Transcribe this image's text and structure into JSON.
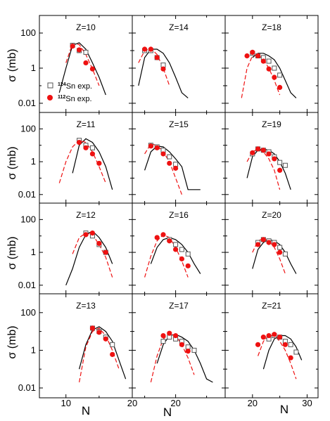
{
  "figure": {
    "ylabel": "σ (mb)",
    "xlabel": "N",
    "y_ticks": [
      "100",
      "1",
      "0.01"
    ],
    "x_ticks": [
      {
        "col": 0,
        "labels": [
          {
            "value": 10,
            "text": "10"
          },
          {
            "value": 20,
            "text": "20"
          }
        ]
      },
      {
        "col": 1,
        "labels": [
          {
            "value": 20,
            "text": "20"
          }
        ]
      },
      {
        "col": 2,
        "labels": [
          {
            "value": 20,
            "text": "20"
          },
          {
            "value": 30,
            "text": "30"
          }
        ]
      }
    ],
    "legend": [
      {
        "sup": "124",
        "name": "Sn exp.",
        "marker": "open-square"
      },
      {
        "sup": "112",
        "name": "Sn exp.",
        "marker": "filled-circle"
      }
    ],
    "colors": {
      "sn124": "#555555",
      "sn112": "#ee1111",
      "calc_black": "#000000",
      "calc_red": "#ee1111",
      "frame": "#000000"
    }
  },
  "chart_data": [
    {
      "type": "scatter",
      "title": "Z=10",
      "xlim": [
        6,
        20
      ],
      "ylim": [
        0.003,
        1000
      ],
      "yscale": "log",
      "sn124": [
        [
          11,
          20
        ],
        [
          12,
          10
        ],
        [
          13,
          8
        ]
      ],
      "sn112": [
        [
          11,
          18
        ],
        [
          12,
          11
        ],
        [
          13,
          2
        ],
        [
          14,
          0.9
        ]
      ],
      "calc_black": [
        [
          9,
          0.04
        ],
        [
          10,
          1
        ],
        [
          11,
          20
        ],
        [
          12,
          28
        ],
        [
          13,
          12
        ],
        [
          14,
          2
        ],
        [
          15,
          0.3
        ],
        [
          16,
          0.03
        ]
      ],
      "calc_red": [
        [
          10,
          2
        ],
        [
          11,
          25
        ],
        [
          12,
          22
        ],
        [
          13,
          6
        ],
        [
          14,
          0.9
        ],
        [
          15,
          0.1
        ]
      ]
    },
    {
      "type": "scatter",
      "title": "Z=14",
      "xlim": [
        13,
        28
      ],
      "ylim": [
        0.003,
        1000
      ],
      "yscale": "log",
      "sn124": [
        [
          15,
          10
        ],
        [
          16,
          10
        ],
        [
          17,
          4
        ],
        [
          18,
          1.5
        ]
      ],
      "sn112": [
        [
          15,
          12
        ],
        [
          16,
          12
        ],
        [
          17,
          4
        ],
        [
          18,
          0.9
        ]
      ],
      "calc_black": [
        [
          14,
          0.1
        ],
        [
          15,
          4
        ],
        [
          16,
          12
        ],
        [
          17,
          12
        ],
        [
          18,
          7
        ],
        [
          19,
          2
        ],
        [
          20,
          0.3
        ],
        [
          21,
          0.04
        ],
        [
          22,
          0.02
        ]
      ],
      "calc_red": [
        [
          14,
          2
        ],
        [
          15,
          10
        ],
        [
          16,
          13
        ],
        [
          17,
          6
        ],
        [
          18,
          1
        ],
        [
          19,
          0.1
        ]
      ]
    },
    {
      "type": "scatter",
      "title": "Z=18",
      "xlim": [
        15,
        32
      ],
      "ylim": [
        0.003,
        1000
      ],
      "yscale": "log",
      "sn124": [
        [
          20,
          7
        ],
        [
          21,
          5
        ],
        [
          22,
          4
        ],
        [
          23,
          2.5
        ],
        [
          24,
          1
        ],
        [
          25,
          0.4
        ]
      ],
      "sn112": [
        [
          19,
          5
        ],
        [
          20,
          8
        ],
        [
          21,
          5
        ],
        [
          22,
          2.5
        ],
        [
          23,
          0.9
        ],
        [
          24,
          0.3
        ],
        [
          25,
          0.08
        ]
      ],
      "calc_black": [
        [
          20,
          4
        ],
        [
          21,
          7
        ],
        [
          22,
          7
        ],
        [
          23,
          5
        ],
        [
          24,
          3
        ],
        [
          25,
          1
        ],
        [
          26,
          0.2
        ],
        [
          27,
          0.04
        ],
        [
          28,
          0.02
        ]
      ],
      "calc_red": [
        [
          18,
          0.02
        ],
        [
          19,
          1
        ],
        [
          20,
          5
        ],
        [
          21,
          6
        ],
        [
          22,
          3
        ],
        [
          23,
          1
        ],
        [
          24,
          0.2
        ],
        [
          25,
          0.03
        ]
      ]
    },
    {
      "type": "scatter",
      "title": "Z=11",
      "xlim": [
        6,
        20
      ],
      "ylim": [
        0.003,
        1000
      ],
      "yscale": "log",
      "sn124": [
        [
          12,
          20
        ],
        [
          13,
          10
        ],
        [
          14,
          7
        ]
      ],
      "sn112": [
        [
          12,
          15
        ],
        [
          13,
          7
        ],
        [
          14,
          3
        ],
        [
          15,
          0.8
        ]
      ],
      "calc_black": [
        [
          11,
          0.2
        ],
        [
          12,
          10
        ],
        [
          13,
          25
        ],
        [
          14,
          15
        ],
        [
          15,
          4
        ],
        [
          16,
          0.5
        ],
        [
          17,
          0.02
        ]
      ],
      "calc_red": [
        [
          9,
          0.05
        ],
        [
          10,
          1
        ],
        [
          11,
          8
        ],
        [
          12,
          20
        ],
        [
          13,
          15
        ],
        [
          14,
          4
        ],
        [
          15,
          0.5
        ],
        [
          16,
          0.05
        ]
      ]
    },
    {
      "type": "scatter",
      "title": "Z=15",
      "xlim": [
        13,
        28
      ],
      "ylim": [
        0.003,
        1000
      ],
      "yscale": "log",
      "sn124": [
        [
          16,
          10
        ],
        [
          17,
          8
        ],
        [
          18,
          5
        ],
        [
          19,
          2
        ],
        [
          20,
          0.7
        ]
      ],
      "sn112": [
        [
          16,
          9
        ],
        [
          17,
          7
        ],
        [
          18,
          3
        ],
        [
          19,
          0.8
        ],
        [
          20,
          0.4
        ]
      ],
      "calc_black": [
        [
          15,
          0.3
        ],
        [
          16,
          4
        ],
        [
          17,
          9
        ],
        [
          18,
          8
        ],
        [
          19,
          4
        ],
        [
          20,
          1.5
        ],
        [
          21,
          0.5
        ],
        [
          22,
          0.02
        ],
        [
          23,
          0.02
        ],
        [
          24,
          0.02
        ]
      ],
      "calc_red": [
        [
          15,
          3
        ],
        [
          16,
          12
        ],
        [
          17,
          10
        ],
        [
          18,
          4
        ],
        [
          19,
          1
        ],
        [
          20,
          0.1
        ],
        [
          21,
          0.01
        ]
      ]
    },
    {
      "type": "scatter",
      "title": "Z=19",
      "xlim": [
        15,
        32
      ],
      "ylim": [
        0.003,
        1000
      ],
      "yscale": "log",
      "sn124": [
        [
          20,
          3
        ],
        [
          21,
          6
        ],
        [
          22,
          5
        ],
        [
          23,
          4
        ],
        [
          24,
          2
        ],
        [
          25,
          0.9
        ],
        [
          26,
          0.6
        ]
      ],
      "sn112": [
        [
          20,
          3.5
        ],
        [
          21,
          6
        ],
        [
          22,
          5
        ],
        [
          23,
          3
        ],
        [
          24,
          1.5
        ],
        [
          25,
          0.3
        ]
      ],
      "calc_black": [
        [
          19,
          0.1
        ],
        [
          20,
          2
        ],
        [
          21,
          5
        ],
        [
          22,
          6
        ],
        [
          23,
          5
        ],
        [
          24,
          3
        ],
        [
          25,
          1
        ],
        [
          26,
          0.2
        ],
        [
          27,
          0.02
        ]
      ],
      "calc_red": [
        [
          19,
          1
        ],
        [
          20,
          4
        ],
        [
          21,
          6
        ],
        [
          22,
          4
        ],
        [
          23,
          1.5
        ],
        [
          24,
          0.3
        ],
        [
          25,
          0.02
        ]
      ]
    },
    {
      "type": "scatter",
      "title": "Z=12",
      "xlim": [
        6,
        20
      ],
      "ylim": [
        0.003,
        1000
      ],
      "yscale": "log",
      "sn124": [
        [
          13,
          15
        ],
        [
          14,
          10
        ],
        [
          15,
          3
        ],
        [
          16,
          1
        ]
      ],
      "sn112": [
        [
          13,
          12
        ],
        [
          14,
          15
        ],
        [
          15,
          3.5
        ],
        [
          16,
          1
        ]
      ],
      "calc_black": [
        [
          10,
          0.01
        ],
        [
          11,
          0.1
        ],
        [
          12,
          2
        ],
        [
          13,
          12
        ],
        [
          14,
          20
        ],
        [
          15,
          8
        ],
        [
          16,
          2
        ],
        [
          17,
          0.2
        ]
      ],
      "calc_red": [
        [
          11,
          0.8
        ],
        [
          12,
          8
        ],
        [
          13,
          15
        ],
        [
          14,
          12
        ],
        [
          15,
          3
        ],
        [
          16,
          0.5
        ],
        [
          17,
          0.03
        ]
      ]
    },
    {
      "type": "scatter",
      "title": "Z=16",
      "xlim": [
        13,
        28
      ],
      "ylim": [
        0.003,
        1000
      ],
      "yscale": "log",
      "sn124": [
        [
          19,
          6
        ],
        [
          20,
          3
        ],
        [
          21,
          1.5
        ],
        [
          22,
          0.8
        ]
      ],
      "sn112": [
        [
          17,
          8
        ],
        [
          18,
          12
        ],
        [
          19,
          5
        ],
        [
          20,
          1.5
        ],
        [
          21,
          0.4
        ],
        [
          22,
          0.15
        ]
      ],
      "calc_black": [
        [
          16,
          0.2
        ],
        [
          17,
          2
        ],
        [
          18,
          6
        ],
        [
          19,
          8
        ],
        [
          20,
          6
        ],
        [
          21,
          3
        ],
        [
          22,
          1
        ],
        [
          23,
          0.2
        ],
        [
          24,
          0.05
        ]
      ],
      "calc_red": [
        [
          15,
          0.03
        ],
        [
          16,
          0.6
        ],
        [
          17,
          5
        ],
        [
          18,
          12
        ],
        [
          19,
          8
        ],
        [
          20,
          2
        ],
        [
          21,
          0.3
        ],
        [
          22,
          0.03
        ]
      ]
    },
    {
      "type": "scatter",
      "title": "Z=20",
      "xlim": [
        15,
        32
      ],
      "ylim": [
        0.003,
        1000
      ],
      "yscale": "log",
      "sn124": [
        [
          21,
          4
        ],
        [
          22,
          6
        ],
        [
          23,
          5
        ],
        [
          24,
          4
        ],
        [
          25,
          2
        ],
        [
          26,
          0.8
        ]
      ],
      "sn112": [
        [
          21,
          3
        ],
        [
          22,
          6
        ],
        [
          23,
          4
        ],
        [
          24,
          3
        ],
        [
          25,
          1
        ]
      ],
      "calc_black": [
        [
          20,
          0.1
        ],
        [
          21,
          1.5
        ],
        [
          22,
          4
        ],
        [
          23,
          6
        ],
        [
          24,
          5
        ],
        [
          25,
          3
        ],
        [
          26,
          1
        ],
        [
          27,
          0.2
        ],
        [
          28,
          0.05
        ]
      ],
      "calc_red": [
        [
          20,
          1
        ],
        [
          21,
          5
        ],
        [
          22,
          7
        ],
        [
          23,
          5
        ],
        [
          24,
          2
        ],
        [
          25,
          0.4
        ],
        [
          26,
          0.05
        ]
      ]
    },
    {
      "type": "scatter",
      "title": "Z=13",
      "xlim": [
        6,
        20
      ],
      "ylim": [
        0.003,
        1000
      ],
      "yscale": "log",
      "sn124": [
        [
          14,
          15
        ],
        [
          15,
          10
        ],
        [
          16,
          5
        ],
        [
          17,
          2
        ]
      ],
      "sn112": [
        [
          14,
          15
        ],
        [
          15,
          9
        ],
        [
          16,
          4
        ],
        [
          17,
          0.6
        ]
      ],
      "calc_black": [
        [
          12,
          0.1
        ],
        [
          13,
          2
        ],
        [
          14,
          12
        ],
        [
          15,
          18
        ],
        [
          16,
          10
        ],
        [
          17,
          3
        ],
        [
          18,
          0.3
        ],
        [
          19,
          0.03
        ]
      ],
      "calc_red": [
        [
          12,
          0.02
        ],
        [
          13,
          1.5
        ],
        [
          14,
          10
        ],
        [
          15,
          15
        ],
        [
          16,
          6
        ],
        [
          17,
          1
        ],
        [
          18,
          0.1
        ]
      ]
    },
    {
      "type": "scatter",
      "title": "Z=17",
      "xlim": [
        13,
        28
      ],
      "ylim": [
        0.003,
        1000
      ],
      "yscale": "log",
      "sn124": [
        [
          18,
          3
        ],
        [
          19,
          5
        ],
        [
          20,
          4
        ],
        [
          21,
          3
        ],
        [
          22,
          1.5
        ],
        [
          23,
          1
        ]
      ],
      "sn112": [
        [
          18,
          6
        ],
        [
          19,
          8
        ],
        [
          20,
          6
        ],
        [
          21,
          2
        ],
        [
          22,
          0.9
        ]
      ],
      "calc_black": [
        [
          17,
          0.2
        ],
        [
          18,
          2
        ],
        [
          19,
          6
        ],
        [
          20,
          7
        ],
        [
          21,
          5
        ],
        [
          22,
          3
        ],
        [
          23,
          1
        ],
        [
          24,
          0.2
        ],
        [
          25,
          0.03
        ],
        [
          26,
          0.02
        ]
      ],
      "calc_red": [
        [
          16,
          0.02
        ],
        [
          17,
          0.5
        ],
        [
          18,
          4
        ],
        [
          19,
          8
        ],
        [
          20,
          6
        ],
        [
          21,
          2
        ],
        [
          22,
          0.4
        ],
        [
          23,
          0.05
        ]
      ]
    },
    {
      "type": "scatter",
      "title": "Z=21",
      "xlim": [
        15,
        32
      ],
      "ylim": [
        0.003,
        1000
      ],
      "yscale": "log",
      "sn124": [
        [
          23,
          4
        ],
        [
          24,
          6
        ],
        [
          25,
          5
        ],
        [
          26,
          3
        ],
        [
          27,
          2
        ],
        [
          28,
          0.8
        ]
      ],
      "sn112": [
        [
          21,
          2
        ],
        [
          22,
          5
        ],
        [
          23,
          6
        ],
        [
          24,
          7
        ],
        [
          25,
          5
        ],
        [
          26,
          2
        ],
        [
          27,
          0.4
        ]
      ],
      "calc_black": [
        [
          22,
          0.1
        ],
        [
          23,
          1
        ],
        [
          24,
          4
        ],
        [
          25,
          6
        ],
        [
          26,
          6
        ],
        [
          27,
          4
        ],
        [
          28,
          1.5
        ],
        [
          29,
          0.3
        ]
      ],
      "calc_red": [
        [
          21,
          0.5
        ],
        [
          22,
          3
        ],
        [
          23,
          6
        ],
        [
          24,
          6
        ],
        [
          25,
          3
        ],
        [
          26,
          1
        ],
        [
          27,
          0.2
        ],
        [
          28,
          0.03
        ]
      ]
    }
  ]
}
